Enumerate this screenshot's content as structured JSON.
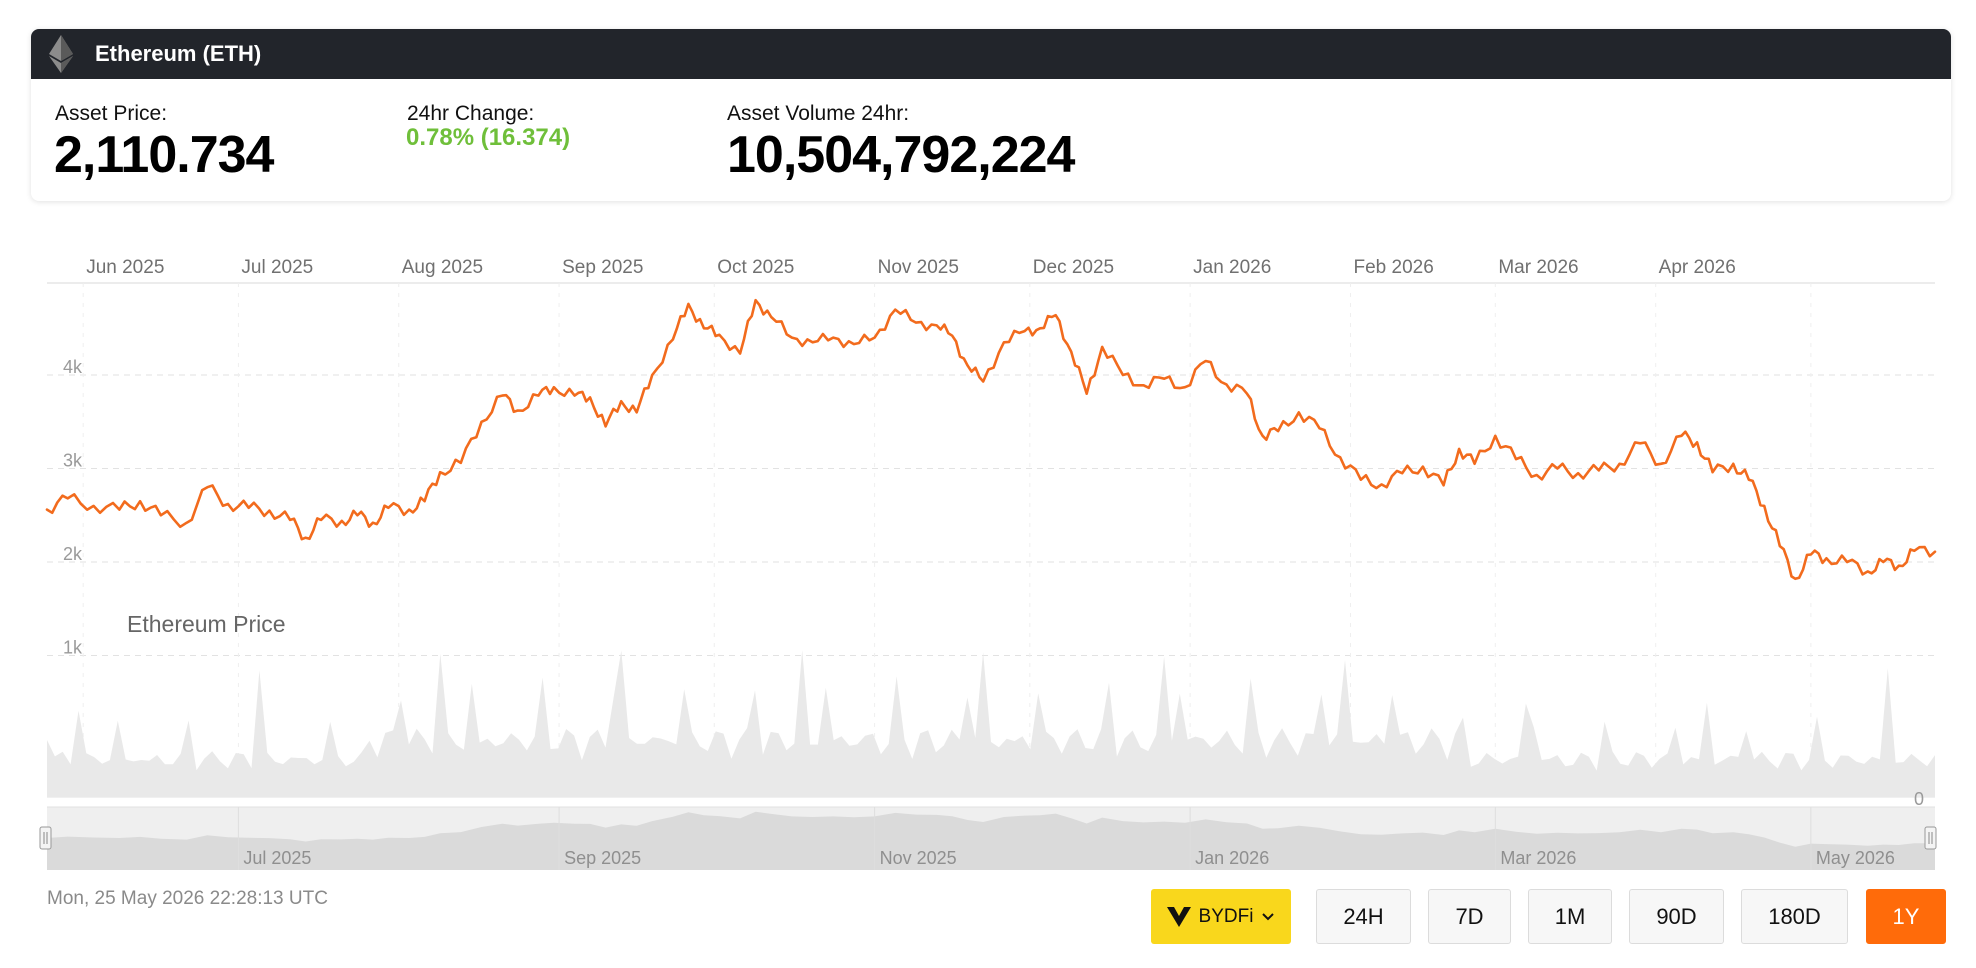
{
  "header": {
    "title": "Ethereum (ETH)"
  },
  "stats": {
    "price_label": "Asset Price:",
    "price_value": "2,110.734",
    "change_label": "24hr Change:",
    "change_value": "0.78% (16.374)",
    "volume_label": "Asset Volume 24hr:",
    "volume_value": "10,504,792,224"
  },
  "colors": {
    "line": "#f26b1d",
    "change_positive": "#6fbf3a",
    "active_button": "#ff6b0a",
    "exchange_button": "#f9d71c",
    "header": "#22252b"
  },
  "chart_data": {
    "type": "line",
    "series_label": "Ethereum Price",
    "x_range": [
      "2025-05-25",
      "2026-05-25"
    ],
    "y_range": [
      0,
      4950
    ],
    "y_ticks": [
      "4k",
      "3k",
      "2k",
      "1k",
      "0"
    ],
    "x_ticks": [
      "Jun 2025",
      "Jul 2025",
      "Aug 2025",
      "Sep 2025",
      "Oct 2025",
      "Nov 2025",
      "Dec 2025",
      "Jan 2026",
      "Feb 2026",
      "Mar 2026",
      "Apr 2026"
    ],
    "navigator_ticks": [
      "Jul 2025",
      "Sep 2025",
      "Nov 2025",
      "Jan 2026",
      "Mar 2026",
      "May 2026"
    ],
    "grid": true,
    "price_points": [
      [
        "2025-05-25",
        2560
      ],
      [
        "2025-05-29",
        2680
      ],
      [
        "2025-06-03",
        2600
      ],
      [
        "2025-06-08",
        2560
      ],
      [
        "2025-06-12",
        2650
      ],
      [
        "2025-06-16",
        2500
      ],
      [
        "2025-06-21",
        2420
      ],
      [
        "2025-06-25",
        2800
      ],
      [
        "2025-06-29",
        2620
      ],
      [
        "2025-07-03",
        2580
      ],
      [
        "2025-07-07",
        2550
      ],
      [
        "2025-07-11",
        2450
      ],
      [
        "2025-07-14",
        2260
      ],
      [
        "2025-07-17",
        2450
      ],
      [
        "2025-07-21",
        2440
      ],
      [
        "2025-07-24",
        2500
      ],
      [
        "2025-07-27",
        2420
      ],
      [
        "2025-07-30",
        2580
      ],
      [
        "2025-08-03",
        2560
      ],
      [
        "2025-08-06",
        2650
      ],
      [
        "2025-08-09",
        2960
      ],
      [
        "2025-08-13",
        3060
      ],
      [
        "2025-08-17",
        3500
      ],
      [
        "2025-08-21",
        3780
      ],
      [
        "2025-08-24",
        3620
      ],
      [
        "2025-08-28",
        3780
      ],
      [
        "2025-08-31",
        3870
      ],
      [
        "2025-09-04",
        3780
      ],
      [
        "2025-09-07",
        3760
      ],
      [
        "2025-09-10",
        3450
      ],
      [
        "2025-09-13",
        3720
      ],
      [
        "2025-09-16",
        3600
      ],
      [
        "2025-09-19",
        4000
      ],
      [
        "2025-09-23",
        4380
      ],
      [
        "2025-09-26",
        4760
      ],
      [
        "2025-09-29",
        4500
      ],
      [
        "2025-10-02",
        4430
      ],
      [
        "2025-10-06",
        4230
      ],
      [
        "2025-10-09",
        4800
      ],
      [
        "2025-10-12",
        4620
      ],
      [
        "2025-10-16",
        4400
      ],
      [
        "2025-10-20",
        4350
      ],
      [
        "2025-10-24",
        4400
      ],
      [
        "2025-10-28",
        4330
      ],
      [
        "2025-11-01",
        4400
      ],
      [
        "2025-11-05",
        4700
      ],
      [
        "2025-11-09",
        4560
      ],
      [
        "2025-11-13",
        4530
      ],
      [
        "2025-11-16",
        4420
      ],
      [
        "2025-11-19",
        4100
      ],
      [
        "2025-11-22",
        3930
      ],
      [
        "2025-11-26",
        4350
      ],
      [
        "2025-11-30",
        4470
      ],
      [
        "2025-12-03",
        4500
      ],
      [
        "2025-12-06",
        4640
      ],
      [
        "2025-12-09",
        4250
      ],
      [
        "2025-12-12",
        3800
      ],
      [
        "2025-12-15",
        4300
      ],
      [
        "2025-12-19",
        4000
      ],
      [
        "2025-12-23",
        3890
      ],
      [
        "2025-12-27",
        3960
      ],
      [
        "2025-12-31",
        3870
      ],
      [
        "2026-01-04",
        4150
      ],
      [
        "2026-01-08",
        3900
      ],
      [
        "2026-01-12",
        3800
      ],
      [
        "2026-01-15",
        3350
      ],
      [
        "2026-01-18",
        3400
      ],
      [
        "2026-01-22",
        3600
      ],
      [
        "2026-01-26",
        3430
      ],
      [
        "2026-01-30",
        3120
      ],
      [
        "2026-02-03",
        2880
      ],
      [
        "2026-02-07",
        2830
      ],
      [
        "2026-02-11",
        2950
      ],
      [
        "2026-02-15",
        3020
      ],
      [
        "2026-02-19",
        2820
      ],
      [
        "2026-02-22",
        3210
      ],
      [
        "2026-02-25",
        3050
      ],
      [
        "2026-03-01",
        3350
      ],
      [
        "2026-03-05",
        3100
      ],
      [
        "2026-03-09",
        2930
      ],
      [
        "2026-03-13",
        3000
      ],
      [
        "2026-03-17",
        2950
      ],
      [
        "2026-03-21",
        2980
      ],
      [
        "2026-03-25",
        3050
      ],
      [
        "2026-03-29",
        3270
      ],
      [
        "2026-04-02",
        3050
      ],
      [
        "2026-04-06",
        3350
      ],
      [
        "2026-04-09",
        3280
      ],
      [
        "2026-04-12",
        2960
      ],
      [
        "2026-04-16",
        3050
      ],
      [
        "2026-04-19",
        2880
      ],
      [
        "2026-04-22",
        2600
      ],
      [
        "2026-04-25",
        2170
      ],
      [
        "2026-04-28",
        1820
      ],
      [
        "2026-05-01",
        2080
      ],
      [
        "2026-05-04",
        2040
      ],
      [
        "2026-05-08",
        2000
      ],
      [
        "2026-05-12",
        1900
      ],
      [
        "2026-05-15",
        2000
      ],
      [
        "2026-05-18",
        1960
      ],
      [
        "2026-05-21",
        2120
      ],
      [
        "2026-05-25",
        2110
      ]
    ]
  },
  "timestamp": "Mon, 25 May 2026 22:28:13 UTC",
  "exchange": {
    "label": "BYDFi"
  },
  "ranges": [
    {
      "label": "24H",
      "active": false
    },
    {
      "label": "7D",
      "active": false
    },
    {
      "label": "1M",
      "active": false
    },
    {
      "label": "90D",
      "active": false
    },
    {
      "label": "180D",
      "active": false
    },
    {
      "label": "1Y",
      "active": true
    }
  ]
}
